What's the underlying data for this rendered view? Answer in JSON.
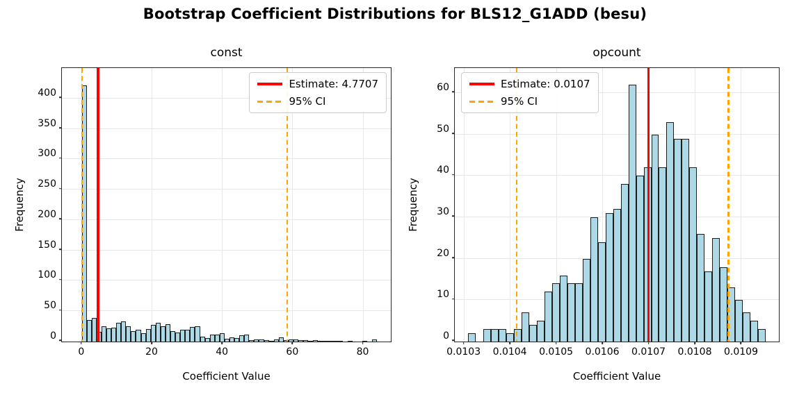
{
  "figure": {
    "title": "Bootstrap Coefficient Distributions for BLS12_G1ADD (besu)",
    "background": "#ffffff"
  },
  "colors": {
    "bar_fill": "#add8e6",
    "bar_edge": "#1c1c1c",
    "estimate_line": "#ff0000",
    "ci_line": "#ffa500",
    "grid": "#e7e7e7",
    "spine": "#262626"
  },
  "chart_data": [
    {
      "type": "bar",
      "subtype": "histogram",
      "title": "const",
      "xlabel": "Coefficient Value",
      "ylabel": "Frequency",
      "estimate": 4.7707,
      "ci95": [
        0.2,
        58.5
      ],
      "legend": {
        "estimate_label": "Estimate: 4.7707",
        "ci_label": "95% CI",
        "position": "top-right"
      },
      "bin_start": 0.14,
      "bin_width": 1.4,
      "frequencies": [
        422,
        35,
        39,
        16,
        25,
        22,
        23,
        31,
        33,
        25,
        17,
        20,
        14,
        21,
        27,
        31,
        25,
        29,
        17,
        15,
        20,
        19,
        24,
        25,
        8,
        6,
        11,
        12,
        14,
        5,
        7,
        6,
        10,
        11,
        2,
        4,
        4,
        2,
        1,
        3,
        7,
        2,
        3,
        4,
        2,
        2,
        1,
        2,
        1,
        1,
        1,
        1,
        1,
        0,
        1,
        0,
        0,
        1,
        0,
        4
      ],
      "xlim": [
        -5.5,
        88
      ],
      "ylim": [
        0,
        450
      ],
      "xticks": [
        0,
        20,
        40,
        60,
        80
      ],
      "xtick_labels": [
        "0",
        "20",
        "40",
        "60",
        "80"
      ],
      "yticks": [
        0,
        50,
        100,
        150,
        200,
        250,
        300,
        350,
        400
      ],
      "ytick_labels": [
        "0",
        "50",
        "100",
        "150",
        "200",
        "250",
        "300",
        "350",
        "400"
      ],
      "grid": true
    },
    {
      "type": "bar",
      "subtype": "histogram",
      "title": "opcount",
      "xlabel": "Coefficient Value",
      "ylabel": "Frequency",
      "estimate": 0.0107,
      "ci95": [
        0.010415,
        0.010873
      ],
      "legend": {
        "estimate_label": "Estimate: 0.0107",
        "ci_label": "95% CI",
        "position": "top-left"
      },
      "bin_start": 0.01031,
      "bin_width": 1.65e-05,
      "frequencies": [
        2,
        0,
        3,
        3,
        3,
        2,
        3,
        7,
        4,
        5,
        12,
        14,
        16,
        14,
        14,
        20,
        30,
        24,
        31,
        32,
        38,
        62,
        40,
        42,
        50,
        42,
        53,
        49,
        49,
        42,
        26,
        17,
        25,
        18,
        13,
        10,
        7,
        5,
        3
      ],
      "xlim": [
        0.010281,
        0.010982
      ],
      "ylim": [
        0,
        66
      ],
      "xticks": [
        0.0103,
        0.0104,
        0.0105,
        0.0106,
        0.0107,
        0.0108,
        0.0109
      ],
      "xtick_labels": [
        "0.0103",
        "0.0104",
        "0.0105",
        "0.0106",
        "0.0107",
        "0.0108",
        "0.0109"
      ],
      "yticks": [
        0,
        10,
        20,
        30,
        40,
        50,
        60
      ],
      "ytick_labels": [
        "0",
        "10",
        "20",
        "30",
        "40",
        "50",
        "60"
      ],
      "grid": true
    }
  ]
}
